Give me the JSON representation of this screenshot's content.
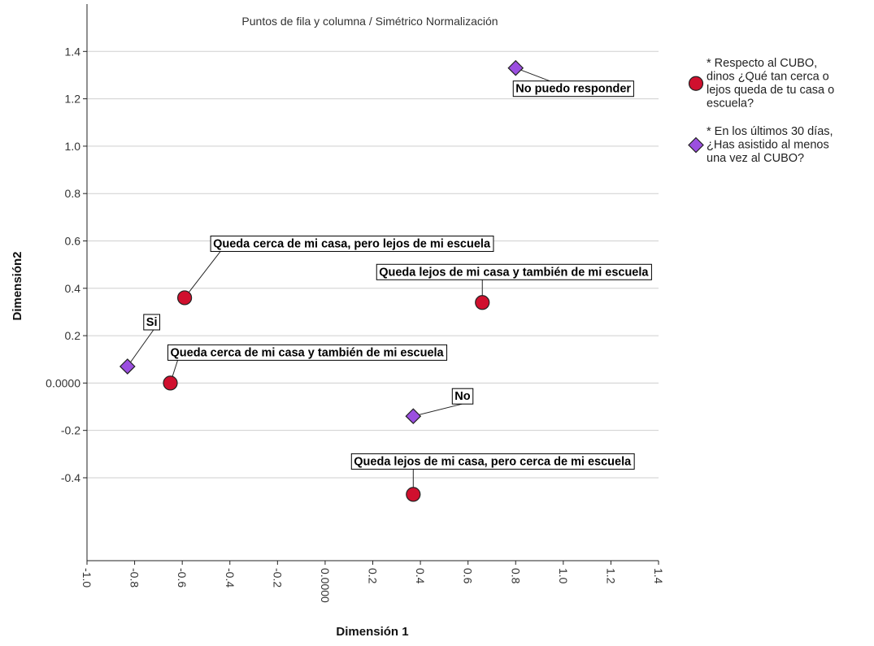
{
  "chart_data": {
    "type": "scatter",
    "title": "Puntos de fila y columna / Simétrico Normalización",
    "xlabel": "Dimensión 1",
    "ylabel": "Dimensión2",
    "xlim": [
      -1.0,
      1.4
    ],
    "ylim": [
      -0.75,
      1.6
    ],
    "x_ticks": [
      "-1.0",
      "-0.8",
      "-0.6",
      "-0.4",
      "-0.2",
      "0.0000",
      "0.2",
      "0.4",
      "0.6",
      "0.8",
      "1.0",
      "1.2",
      "1.4"
    ],
    "x_tick_values": [
      -1.0,
      -0.8,
      -0.6,
      -0.4,
      -0.2,
      0.0,
      0.2,
      0.4,
      0.6,
      0.8,
      1.0,
      1.2,
      1.4
    ],
    "y_ticks": [
      "1.4",
      "1.2",
      "1.0",
      "0.8",
      "0.6",
      "0.4",
      "0.2",
      "0.0000",
      "-0.2",
      "-0.4"
    ],
    "y_tick_values": [
      1.4,
      1.2,
      1.0,
      0.8,
      0.6,
      0.4,
      0.2,
      0.0,
      -0.2,
      -0.4
    ],
    "grid": "horizontal",
    "legend_position": "right",
    "series": [
      {
        "name": "* Respecto al CUBO, dinos ¿Qué tan cerca o lejos queda de tu casa o escuela?",
        "legend_lines": [
          "* Respecto al CUBO,",
          "dinos ¿Qué tan cerca o",
          "lejos queda de tu casa o",
          "escuela?"
        ],
        "marker": "circle",
        "color": "#d0102e",
        "points": [
          {
            "label": "Queda cerca de mi casa, pero lejos de mi escuela",
            "x": -0.59,
            "y": 0.36
          },
          {
            "label": "Queda lejos de mi casa y también de mi escuela",
            "x": 0.66,
            "y": 0.34
          },
          {
            "label": "Queda cerca de mi casa y también de mi escuela",
            "x": -0.65,
            "y": 0.0
          },
          {
            "label": "Queda lejos de mi casa, pero cerca de mi escuela",
            "x": 0.37,
            "y": -0.47
          }
        ]
      },
      {
        "name": "* En los últimos 30 días, ¿Has asistido al menos una vez al CUBO?",
        "legend_lines": [
          "* En los últimos 30 días,",
          "¿Has asistido al menos",
          "una vez al CUBO?"
        ],
        "marker": "diamond",
        "color": "#9b4fe0",
        "points": [
          {
            "label": "No puedo responder",
            "x": 0.8,
            "y": 1.33
          },
          {
            "label": "Si",
            "x": -0.83,
            "y": 0.07
          },
          {
            "label": "No",
            "x": 0.37,
            "y": -0.14
          }
        ]
      }
    ]
  }
}
